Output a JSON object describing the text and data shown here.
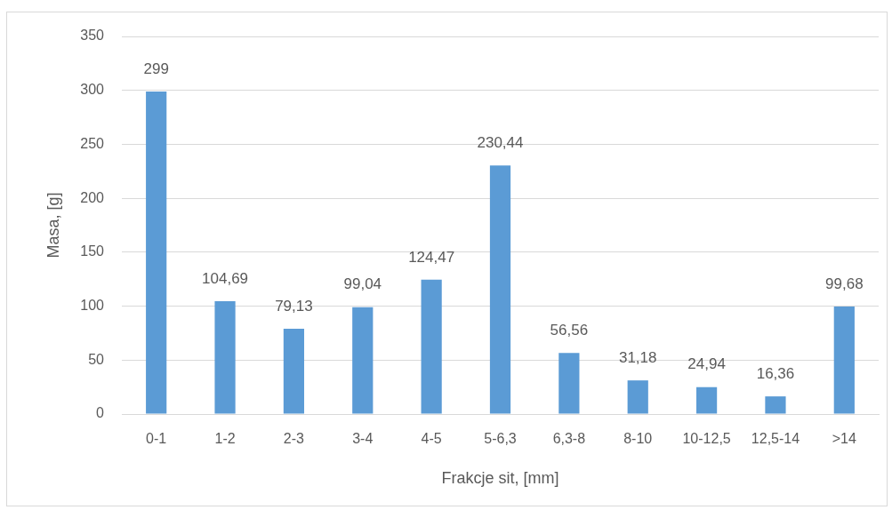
{
  "chart_data": {
    "type": "bar",
    "xlabel": "Frakcje sit, [mm]",
    "ylabel": "Masa, [g]",
    "categories": [
      "0-1",
      "1-2",
      "2-3",
      "3-4",
      "4-5",
      "5-6,3",
      "6,3-8",
      "8-10",
      "10-12,5",
      "12,5-14",
      ">14"
    ],
    "values": [
      299,
      104.69,
      79.13,
      99.04,
      124.47,
      230.44,
      56.56,
      31.18,
      24.94,
      16.36,
      99.68
    ],
    "value_labels": [
      "299",
      "104,69",
      "79,13",
      "99,04",
      "124,47",
      "230,44",
      "56,56",
      "31,18",
      "24,94",
      "16,36",
      "99,68"
    ],
    "color": "#5b9bd5",
    "ylim": [
      0,
      350
    ],
    "yticks": [
      0,
      50,
      100,
      150,
      200,
      250,
      300,
      350
    ],
    "grid": "y"
  }
}
